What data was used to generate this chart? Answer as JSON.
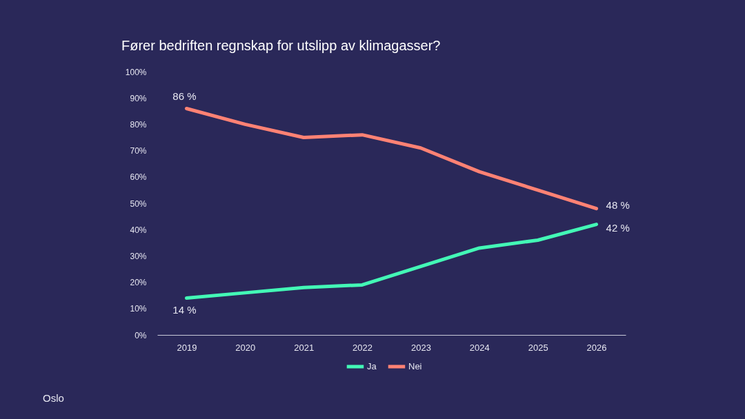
{
  "chart_data": {
    "type": "line",
    "title": "Fører bedriften regnskap for utslipp av klimagasser?",
    "categories": [
      "2019",
      "2020",
      "2021",
      "2022",
      "2023",
      "2024",
      "2025",
      "2026"
    ],
    "series": [
      {
        "name": "Ja",
        "color": "#43f8b6",
        "values": [
          14,
          16,
          18,
          19,
          26,
          33,
          36,
          42
        ],
        "value_labels": [
          "14 %",
          null,
          null,
          null,
          null,
          null,
          null,
          "42 %"
        ]
      },
      {
        "name": "Nei",
        "color": "#ff8274",
        "values": [
          86,
          80,
          75,
          76,
          71,
          62,
          55,
          48
        ],
        "value_labels": [
          "86 %",
          null,
          null,
          null,
          null,
          null,
          null,
          "48 %"
        ]
      }
    ],
    "ylim": [
      0,
      100
    ],
    "yticks": [
      {
        "value": 0,
        "label": "0%"
      },
      {
        "value": 10,
        "label": "10%"
      },
      {
        "value": 20,
        "label": "20%"
      },
      {
        "value": 30,
        "label": "30%"
      },
      {
        "value": 40,
        "label": "40%"
      },
      {
        "value": 50,
        "label": "50%"
      },
      {
        "value": 60,
        "label": "60%"
      },
      {
        "value": 70,
        "label": "70%"
      },
      {
        "value": 80,
        "label": "80%"
      },
      {
        "value": 90,
        "label": "90%"
      },
      {
        "value": 100,
        "label": "100%"
      }
    ],
    "grid": false,
    "legend": "bottom",
    "line_style": "solid",
    "annotations": [
      "Oslo"
    ]
  }
}
